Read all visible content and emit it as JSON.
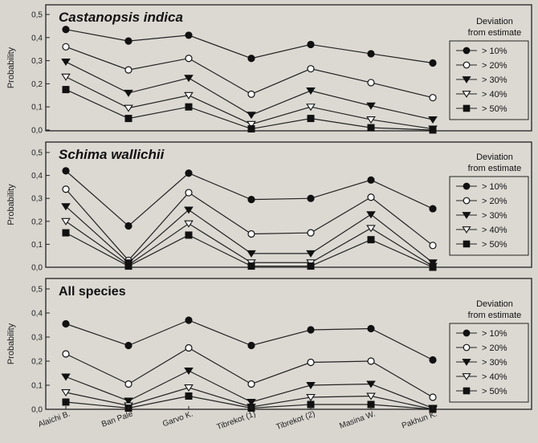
{
  "chart_data": [
    {
      "type": "line",
      "title": "Castanopsis indica",
      "ylabel": "Probability",
      "ylim": [
        0,
        0.5
      ],
      "yticks": [
        "0,0",
        "0,1",
        "0,2",
        "0,3",
        "0,4",
        "0,5"
      ],
      "categories": [
        "Alaichi B.",
        "Ban Pale",
        "Garvo K.",
        "Tibrekot (1)",
        "Tibrekot (2)",
        "Masina W.",
        "Pakhun K."
      ],
      "legend_title": "Deviation from estimate",
      "legend_placement": "right",
      "series": [
        {
          "name": "> 10%",
          "marker": "circle-filled",
          "values": [
            0.435,
            0.385,
            0.41,
            0.31,
            0.37,
            0.33,
            0.29
          ]
        },
        {
          "name": "> 20%",
          "marker": "circle-open",
          "values": [
            0.36,
            0.26,
            0.31,
            0.155,
            0.265,
            0.205,
            0.14
          ]
        },
        {
          "name": "> 30%",
          "marker": "triangle-filled",
          "values": [
            0.295,
            0.16,
            0.225,
            0.065,
            0.17,
            0.105,
            0.045
          ]
        },
        {
          "name": "> 40%",
          "marker": "triangle-open",
          "values": [
            0.23,
            0.095,
            0.15,
            0.025,
            0.1,
            0.045,
            0.005
          ]
        },
        {
          "name": "> 50%",
          "marker": "square-filled",
          "values": [
            0.175,
            0.05,
            0.1,
            0.005,
            0.05,
            0.01,
            0.0
          ]
        }
      ]
    },
    {
      "type": "line",
      "title": "Schima wallichii",
      "ylabel": "Probability",
      "ylim": [
        0,
        0.5
      ],
      "yticks": [
        "0,0",
        "0,1",
        "0,2",
        "0,3",
        "0,4",
        "0,5"
      ],
      "categories": [
        "Alaichi B.",
        "Ban Pale",
        "Garvo K.",
        "Tibrekot (1)",
        "Tibrekot (2)",
        "Masina W.",
        "Pakhun K."
      ],
      "legend_title": "Deviation from estimate",
      "legend_placement": "right",
      "series": [
        {
          "name": "> 10%",
          "marker": "circle-filled",
          "values": [
            0.42,
            0.18,
            0.41,
            0.295,
            0.3,
            0.38,
            0.255
          ]
        },
        {
          "name": "> 20%",
          "marker": "circle-open",
          "values": [
            0.34,
            0.03,
            0.325,
            0.145,
            0.15,
            0.305,
            0.095
          ]
        },
        {
          "name": "> 30%",
          "marker": "triangle-filled",
          "values": [
            0.265,
            0.02,
            0.25,
            0.06,
            0.06,
            0.23,
            0.02
          ]
        },
        {
          "name": "> 40%",
          "marker": "triangle-open",
          "values": [
            0.2,
            0.01,
            0.19,
            0.02,
            0.02,
            0.17,
            0.005
          ]
        },
        {
          "name": "> 50%",
          "marker": "square-filled",
          "values": [
            0.15,
            0.005,
            0.14,
            0.005,
            0.005,
            0.12,
            0.0
          ]
        }
      ]
    },
    {
      "type": "line",
      "title": "All species",
      "ylabel": "Probability",
      "ylim": [
        0,
        0.5
      ],
      "yticks": [
        "0,0",
        "0,1",
        "0,2",
        "0,3",
        "0,4",
        "0,5"
      ],
      "categories": [
        "Alaichi B.",
        "Ban Pale",
        "Garvo K.",
        "Tibrekot (1)",
        "Tibrekot (2)",
        "Masina W.",
        "Pakhun K."
      ],
      "legend_title": "Deviation from estimate",
      "legend_placement": "right",
      "series": [
        {
          "name": "> 10%",
          "marker": "circle-filled",
          "values": [
            0.355,
            0.265,
            0.37,
            0.265,
            0.33,
            0.335,
            0.205
          ]
        },
        {
          "name": "> 20%",
          "marker": "circle-open",
          "values": [
            0.23,
            0.105,
            0.255,
            0.105,
            0.195,
            0.2,
            0.05
          ]
        },
        {
          "name": "> 30%",
          "marker": "triangle-filled",
          "values": [
            0.135,
            0.035,
            0.16,
            0.03,
            0.1,
            0.105,
            0.005
          ]
        },
        {
          "name": "> 40%",
          "marker": "triangle-open",
          "values": [
            0.07,
            0.015,
            0.09,
            0.01,
            0.05,
            0.055,
            0.0
          ]
        },
        {
          "name": "> 50%",
          "marker": "square-filled",
          "values": [
            0.03,
            0.005,
            0.055,
            0.005,
            0.02,
            0.02,
            0.0
          ]
        }
      ]
    }
  ]
}
